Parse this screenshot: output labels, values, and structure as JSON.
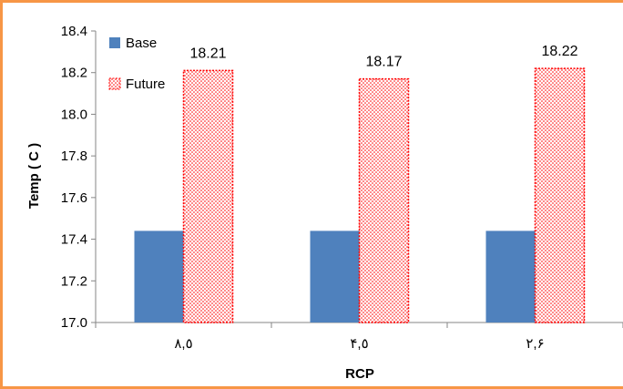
{
  "chart_data": {
    "type": "bar",
    "title": "",
    "xlabel": "RCP",
    "ylabel": "Temp ( C )",
    "ylim": [
      17.0,
      18.4
    ],
    "yticks": [
      "17.0",
      "17.2",
      "17.4",
      "17.6",
      "17.8",
      "18.0",
      "18.2",
      "18.4"
    ],
    "categories": [
      "٨,٥",
      "۴,٥",
      "٢,۶"
    ],
    "series": [
      {
        "name": "Base",
        "values": [
          17.44,
          17.44,
          17.44
        ],
        "color": "#4F81BD",
        "pattern": "solid"
      },
      {
        "name": "Future",
        "values": [
          18.21,
          18.17,
          18.22
        ],
        "color": "#FF0000",
        "pattern": "dotted"
      }
    ],
    "data_labels": [
      "18.21",
      "18.17",
      "18.22"
    ],
    "legend_position": "top-left",
    "grid": false
  },
  "colors": {
    "border": "#F79646",
    "axis": "#868686"
  }
}
